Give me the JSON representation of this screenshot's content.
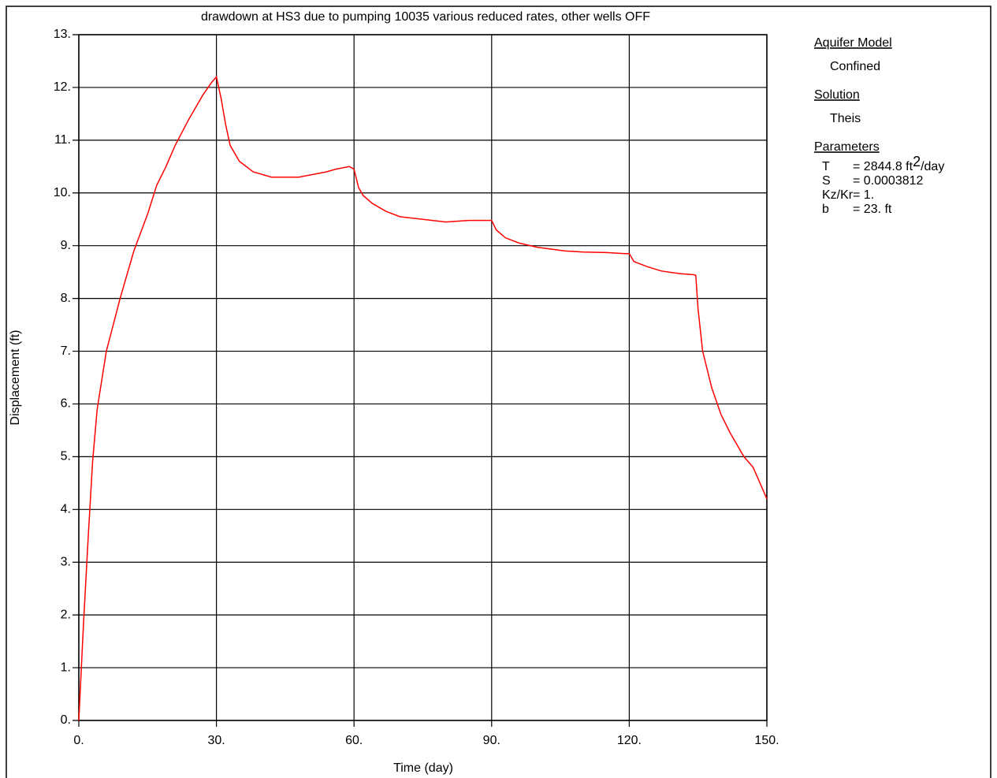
{
  "chart_data": {
    "type": "line",
    "title": "drawdown at HS3 due to pumping 10035 various reduced rates, other wells OFF",
    "xlabel": "Time (day)",
    "ylabel": "Displacement (ft)",
    "xlim": [
      0,
      150
    ],
    "ylim": [
      0,
      13
    ],
    "xticks": [
      {
        "value": 0,
        "label": "0."
      },
      {
        "value": 30,
        "label": "30."
      },
      {
        "value": 60,
        "label": "60."
      },
      {
        "value": 90,
        "label": "90."
      },
      {
        "value": 120,
        "label": "120."
      },
      {
        "value": 150,
        "label": "150."
      }
    ],
    "yticks": [
      {
        "value": 0,
        "label": "0."
      },
      {
        "value": 1,
        "label": "1."
      },
      {
        "value": 2,
        "label": "2."
      },
      {
        "value": 3,
        "label": "3."
      },
      {
        "value": 4,
        "label": "4."
      },
      {
        "value": 5,
        "label": "5."
      },
      {
        "value": 6,
        "label": "6."
      },
      {
        "value": 7,
        "label": "7."
      },
      {
        "value": 8,
        "label": "8."
      },
      {
        "value": 9,
        "label": "9."
      },
      {
        "value": 10,
        "label": "10."
      },
      {
        "value": 11,
        "label": "11."
      },
      {
        "value": 12,
        "label": "12."
      },
      {
        "value": 13,
        "label": "13."
      }
    ],
    "grid": true,
    "series": [
      {
        "color": "#ff0000",
        "x": [
          0,
          1,
          2,
          3,
          4,
          6,
          9,
          12,
          15,
          17,
          19,
          21,
          24,
          27,
          29,
          30,
          31,
          32,
          33,
          35,
          38,
          42,
          48,
          54,
          56,
          59,
          60,
          61,
          62,
          64,
          67,
          70,
          75,
          80,
          85,
          89,
          90,
          91,
          93,
          96,
          100,
          106,
          110,
          115,
          119,
          120,
          121,
          124,
          127,
          131,
          134,
          134.5,
          135,
          136,
          138,
          140,
          142,
          145,
          147,
          148,
          150
        ],
        "values": [
          0,
          1.8,
          3.4,
          4.9,
          5.9,
          7.0,
          8.0,
          8.9,
          9.6,
          10.15,
          10.5,
          10.9,
          11.4,
          11.85,
          12.1,
          12.2,
          11.8,
          11.3,
          10.9,
          10.6,
          10.4,
          10.3,
          10.3,
          10.4,
          10.45,
          10.5,
          10.45,
          10.1,
          9.95,
          9.8,
          9.65,
          9.55,
          9.5,
          9.45,
          9.48,
          9.48,
          9.48,
          9.3,
          9.15,
          9.05,
          8.97,
          8.9,
          8.88,
          8.87,
          8.85,
          8.85,
          8.7,
          8.6,
          8.52,
          8.47,
          8.45,
          8.44,
          7.8,
          7.0,
          6.3,
          5.8,
          5.45,
          5.0,
          4.8,
          4.6,
          4.2
        ]
      }
    ]
  },
  "info_panel": {
    "aquifer_heading": "Aquifer Model",
    "aquifer": "Confined",
    "solution_heading": "Solution",
    "solution": "Theis",
    "parameters_heading": "Parameters",
    "parameters": [
      {
        "name": "T",
        "value": "= 2844.8 ft",
        "sup": "2",
        "suffix": "/day"
      },
      {
        "name": "S",
        "value": "= 0.0003812"
      },
      {
        "name": "Kz/Kr",
        "value": "= 1."
      },
      {
        "name": "b",
        "value": "= 23. ft"
      }
    ]
  }
}
